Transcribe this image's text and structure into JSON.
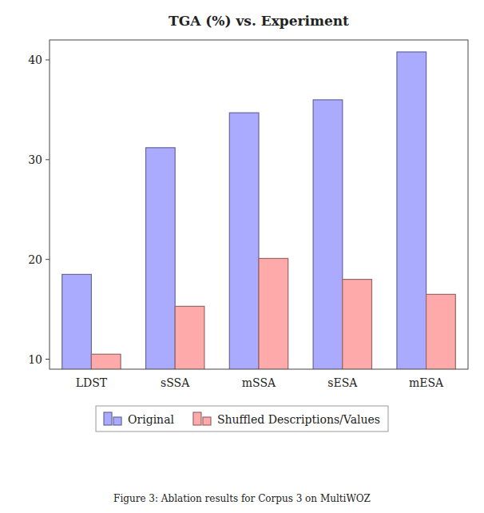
{
  "chart_data": {
    "type": "bar",
    "title": "TGA (%) vs. Experiment",
    "categories": [
      "LDST",
      "sSSA",
      "mSSA",
      "sESA",
      "mESA"
    ],
    "series": [
      {
        "name": "Original",
        "color": "#aaaaff",
        "values": [
          18.5,
          31.2,
          34.7,
          36.0,
          40.8
        ]
      },
      {
        "name": "Shuffled Descriptions/Values",
        "color": "#ffaaaa",
        "values": [
          10.5,
          15.3,
          20.1,
          18.0,
          16.5
        ]
      }
    ],
    "ylim": [
      9,
      42
    ],
    "yticks": [
      10,
      20,
      30,
      40
    ],
    "grid": false,
    "legend": "bottom",
    "annotations": [
      "Figure 3: Ablation results for Corpus 3 on MultiWOZ"
    ]
  }
}
